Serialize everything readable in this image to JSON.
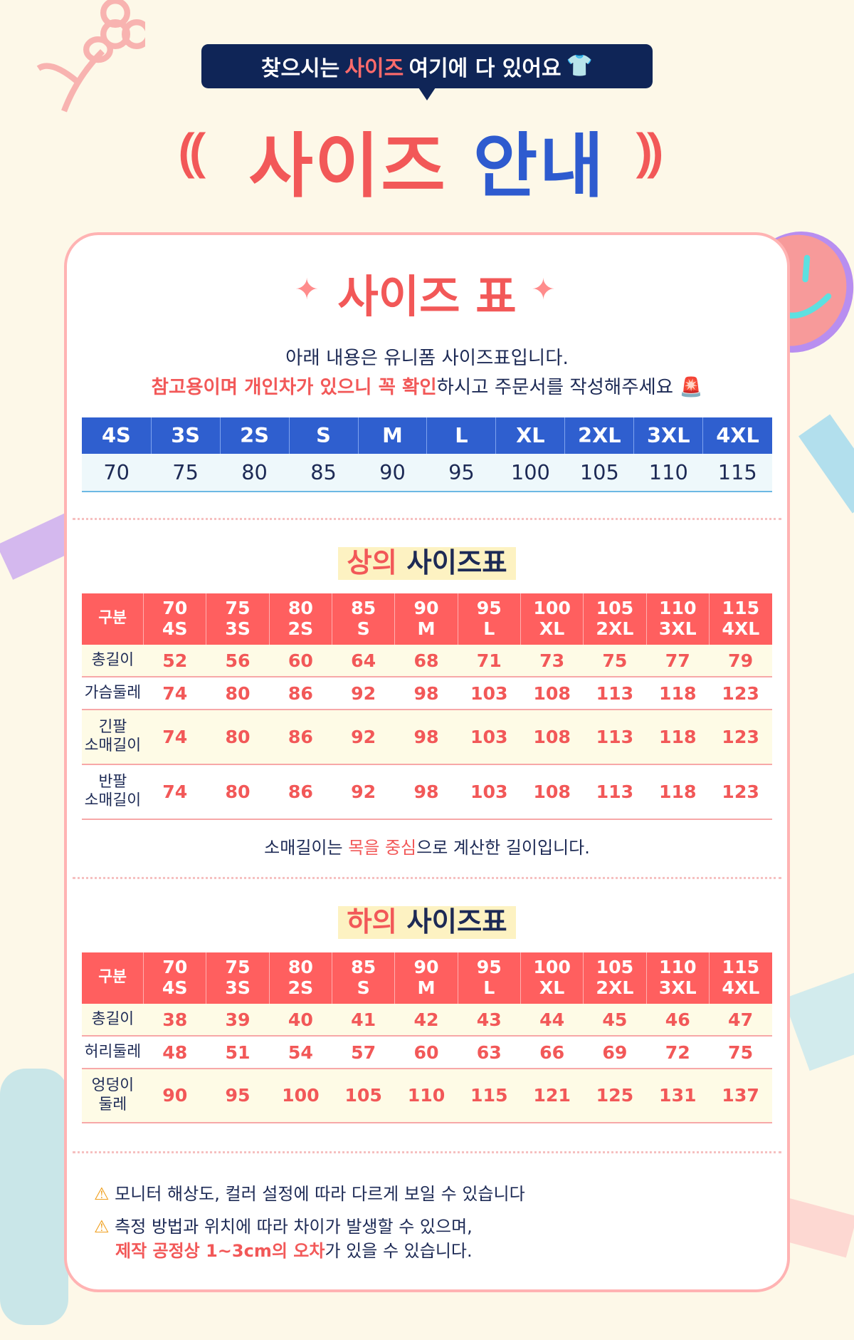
{
  "banner": {
    "pre": "찾으시는 ",
    "highlight": "사이즈",
    "post": " 여기에 다 있어요",
    "icon": "tshirt-icon"
  },
  "title": {
    "part1": "사이즈",
    "part2": "안내"
  },
  "card_title": "사이즈 표",
  "intro": {
    "line1": "아래 내용은 유니폼 사이즈표입니다.",
    "line2_red": "참고용이며 개인차가 있으니 꼭 확인",
    "line2_rest": "하시고 주문서를 작성해주세요",
    "icon": "siren-icon"
  },
  "size_map": {
    "labels": [
      "4S",
      "3S",
      "2S",
      "S",
      "M",
      "L",
      "XL",
      "2XL",
      "3XL",
      "4XL"
    ],
    "values": [
      "70",
      "75",
      "80",
      "85",
      "90",
      "95",
      "100",
      "105",
      "110",
      "115"
    ]
  },
  "top_table": {
    "title_red": "상의",
    "title_rest": " 사이즈표",
    "header_first": "구분",
    "headers": [
      [
        "70",
        "4S"
      ],
      [
        "75",
        "3S"
      ],
      [
        "80",
        "2S"
      ],
      [
        "85",
        "S"
      ],
      [
        "90",
        "M"
      ],
      [
        "95",
        "L"
      ],
      [
        "100",
        "XL"
      ],
      [
        "105",
        "2XL"
      ],
      [
        "110",
        "3XL"
      ],
      [
        "115",
        "4XL"
      ]
    ],
    "rows": [
      {
        "label": [
          "총길이"
        ],
        "values": [
          "52",
          "56",
          "60",
          "64",
          "68",
          "71",
          "73",
          "75",
          "77",
          "79"
        ]
      },
      {
        "label": [
          "가슴둘레"
        ],
        "values": [
          "74",
          "80",
          "86",
          "92",
          "98",
          "103",
          "108",
          "113",
          "118",
          "123"
        ]
      },
      {
        "label": [
          "긴팔",
          "소매길이"
        ],
        "values": [
          "74",
          "80",
          "86",
          "92",
          "98",
          "103",
          "108",
          "113",
          "118",
          "123"
        ]
      },
      {
        "label": [
          "반팔",
          "소매길이"
        ],
        "values": [
          "74",
          "80",
          "86",
          "92",
          "98",
          "103",
          "108",
          "113",
          "118",
          "123"
        ]
      }
    ],
    "note": {
      "pre": "소매길이는 ",
      "red": "목을 중심",
      "post": "으로 계산한 길이입니다."
    }
  },
  "bottom_table": {
    "title_red": "하의",
    "title_rest": " 사이즈표",
    "header_first": "구분",
    "headers": [
      [
        "70",
        "4S"
      ],
      [
        "75",
        "3S"
      ],
      [
        "80",
        "2S"
      ],
      [
        "85",
        "S"
      ],
      [
        "90",
        "M"
      ],
      [
        "95",
        "L"
      ],
      [
        "100",
        "XL"
      ],
      [
        "105",
        "2XL"
      ],
      [
        "110",
        "3XL"
      ],
      [
        "115",
        "4XL"
      ]
    ],
    "rows": [
      {
        "label": [
          "총길이"
        ],
        "values": [
          "38",
          "39",
          "40",
          "41",
          "42",
          "43",
          "44",
          "45",
          "46",
          "47"
        ]
      },
      {
        "label": [
          "허리둘레"
        ],
        "values": [
          "48",
          "51",
          "54",
          "57",
          "60",
          "63",
          "66",
          "69",
          "72",
          "75"
        ]
      },
      {
        "label": [
          "엉덩이",
          "둘레"
        ],
        "values": [
          "90",
          "95",
          "100",
          "105",
          "110",
          "115",
          "121",
          "125",
          "131",
          "137"
        ]
      }
    ]
  },
  "warnings": {
    "w1": "모니터 해상도, 컬러 설정에 따라 다르게 보일 수 있습니다",
    "w2": "측정 방법과 위치에 따라 차이가 발생할 수 있으며,",
    "w3_red": "제작 공정상 1~3cm의 오차",
    "w3_rest": "가 있을 수 있습니다.",
    "icon": "warning-icon"
  },
  "colors": {
    "coral": "#f25858",
    "blue": "#2e5bcf",
    "navy": "#0f2557",
    "cream": "#fdf8e8"
  }
}
